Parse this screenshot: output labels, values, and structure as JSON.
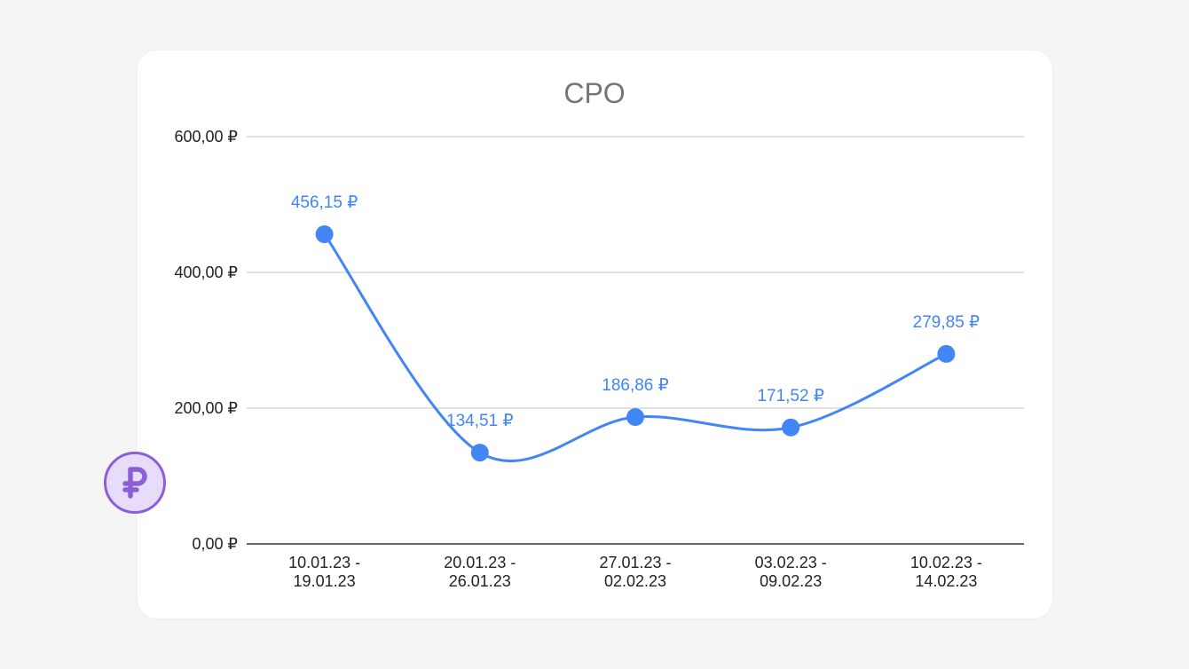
{
  "colors": {
    "series": "#4285f4",
    "grid": "#d0d0d0",
    "axis": "#333333",
    "title": "#757575",
    "text": "#222222",
    "badge_fill": "#e8dcfb",
    "badge_stroke": "#8b5fd6"
  },
  "badge": {
    "icon": "ruble-icon"
  },
  "chart_data": {
    "type": "line",
    "title": "CPO",
    "xlabel": "",
    "ylabel": "",
    "ylim": [
      0,
      600
    ],
    "yticks": [
      {
        "value": 0,
        "label": "0,00 ₽"
      },
      {
        "value": 200,
        "label": "200,00 ₽"
      },
      {
        "value": 400,
        "label": "400,00 ₽"
      },
      {
        "value": 600,
        "label": "600,00 ₽"
      }
    ],
    "categories": [
      [
        "10.01.23 -",
        "19.01.23"
      ],
      [
        "20.01.23 -",
        "26.01.23"
      ],
      [
        "27.01.23 -",
        "02.02.23"
      ],
      [
        "03.02.23 -",
        "09.02.23"
      ],
      [
        "10.02.23 -",
        "14.02.23"
      ]
    ],
    "values": [
      456.15,
      134.51,
      186.86,
      171.52,
      279.85
    ],
    "value_labels": [
      "456,15 ₽",
      "134,51 ₽",
      "186,86 ₽",
      "171,52 ₽",
      "279,85 ₽"
    ],
    "smooth": true,
    "grid": true,
    "legend": "none"
  }
}
